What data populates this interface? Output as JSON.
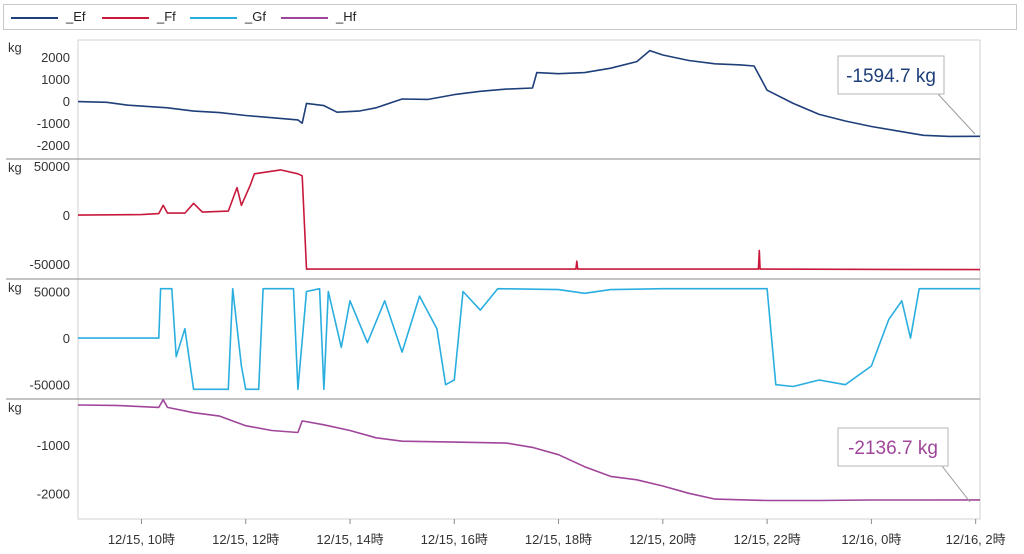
{
  "legend": {
    "items": [
      {
        "label": "_Ef",
        "color": "#1f3f7a"
      },
      {
        "label": "_Ff",
        "color": "#c8193c"
      },
      {
        "label": "_Gf",
        "color": "#2aaee0"
      },
      {
        "label": "_Hf",
        "color": "#a0469a"
      }
    ]
  },
  "chart_data": {
    "type": "line",
    "x_axis": {
      "range": [
        "12/15 08:47",
        "12/16 02:05"
      ],
      "tick_labels": [
        {
          "t": "12/15 10:00",
          "label": "12/15, 10時"
        },
        {
          "t": "12/15 12:00",
          "label": "12/15, 12時"
        },
        {
          "t": "12/15 14:00",
          "label": "12/15, 14時"
        },
        {
          "t": "12/15 16:00",
          "label": "12/15, 16時"
        },
        {
          "t": "12/15 18:00",
          "label": "12/15, 18時"
        },
        {
          "t": "12/15 20:00",
          "label": "12/15, 20時"
        },
        {
          "t": "12/15 22:00",
          "label": "12/15, 22時"
        },
        {
          "t": "12/16 00:00",
          "label": "12/16, 0時"
        },
        {
          "t": "12/16 02:00",
          "label": "12/16, 2時"
        }
      ]
    },
    "panels": [
      {
        "series": "_Ef",
        "color": "#1f3f7a",
        "unit": "kg",
        "ylim": [
          -2400,
          2600
        ],
        "yticks": [
          2000,
          1000,
          0,
          -1000,
          -2000
        ],
        "ytick_labels": [
          "2000",
          "1000",
          "0",
          "-1000",
          "-2000"
        ],
        "callout": "-1594.7 kg",
        "points": [
          [
            "12/15 08:47",
            -20
          ],
          [
            "12/15 09:20",
            -50
          ],
          [
            "12/15 09:45",
            -180
          ],
          [
            "12/15 10:30",
            -300
          ],
          [
            "12/15 11:00",
            -450
          ],
          [
            "12/15 11:30",
            -520
          ],
          [
            "12/15 12:00",
            -650
          ],
          [
            "12/15 12:30",
            -750
          ],
          [
            "12/15 13:00",
            -850
          ],
          [
            "12/15 13:05",
            -1000
          ],
          [
            "12/15 13:10",
            -100
          ],
          [
            "12/15 13:30",
            -200
          ],
          [
            "12/15 13:45",
            -500
          ],
          [
            "12/15 14:10",
            -450
          ],
          [
            "12/15 14:30",
            -300
          ],
          [
            "12/15 15:00",
            100
          ],
          [
            "12/15 15:30",
            80
          ],
          [
            "12/15 16:00",
            300
          ],
          [
            "12/15 16:30",
            450
          ],
          [
            "12/15 17:00",
            550
          ],
          [
            "12/15 17:30",
            600
          ],
          [
            "12/15 17:35",
            1300
          ],
          [
            "12/15 18:00",
            1250
          ],
          [
            "12/15 18:30",
            1300
          ],
          [
            "12/15 19:00",
            1500
          ],
          [
            "12/15 19:30",
            1800
          ],
          [
            "12/15 19:45",
            2300
          ],
          [
            "12/15 20:00",
            2100
          ],
          [
            "12/15 20:30",
            1850
          ],
          [
            "12/15 21:00",
            1700
          ],
          [
            "12/15 21:30",
            1650
          ],
          [
            "12/15 21:45",
            1600
          ],
          [
            "12/15 22:00",
            500
          ],
          [
            "12/15 22:30",
            -100
          ],
          [
            "12/15 23:00",
            -600
          ],
          [
            "12/15 23:30",
            -900
          ],
          [
            "12/16 00:00",
            -1150
          ],
          [
            "12/16 00:30",
            -1350
          ],
          [
            "12/16 01:00",
            -1550
          ],
          [
            "12/16 01:30",
            -1600
          ],
          [
            "12/16 02:05",
            -1594.7
          ]
        ]
      },
      {
        "series": "_Ff",
        "color": "#c8193c",
        "unit": "kg",
        "ylim": [
          -60000,
          52000
        ],
        "yticks": [
          50000,
          0,
          -50000
        ],
        "ytick_labels": [
          "50000",
          "0",
          "-50000"
        ],
        "points": [
          [
            "12/15 08:47",
            0
          ],
          [
            "12/15 10:00",
            500
          ],
          [
            "12/15 10:20",
            1500
          ],
          [
            "12/15 10:25",
            10000
          ],
          [
            "12/15 10:30",
            2000
          ],
          [
            "12/15 10:50",
            2000
          ],
          [
            "12/15 11:00",
            12000
          ],
          [
            "12/15 11:10",
            3000
          ],
          [
            "12/15 11:40",
            4000
          ],
          [
            "12/15 11:50",
            28000
          ],
          [
            "12/15 11:55",
            10000
          ],
          [
            "12/15 12:05",
            30000
          ],
          [
            "12/15 12:10",
            42000
          ],
          [
            "12/15 12:40",
            46000
          ],
          [
            "12/15 13:00",
            42000
          ],
          [
            "12/15 13:05",
            40000
          ],
          [
            "12/15 13:10",
            -55000
          ],
          [
            "12/15 18:20",
            -55000
          ],
          [
            "12/15 18:21",
            -47000
          ],
          [
            "12/15 18:22",
            -55000
          ],
          [
            "12/15 21:50",
            -55000
          ],
          [
            "12/15 21:51",
            -36000
          ],
          [
            "12/15 21:52",
            -55000
          ],
          [
            "12/16 02:05",
            -55500
          ]
        ]
      },
      {
        "series": "_Gf",
        "color": "#2aaee0",
        "unit": "kg",
        "ylim": [
          -60000,
          58000
        ],
        "yticks": [
          50000,
          0,
          -50000
        ],
        "ytick_labels": [
          "50000",
          "0",
          "-50000"
        ],
        "points": [
          [
            "12/15 08:47",
            0
          ],
          [
            "12/15 10:20",
            0
          ],
          [
            "12/15 10:22",
            53000
          ],
          [
            "12/15 10:35",
            53000
          ],
          [
            "12/15 10:40",
            -20000
          ],
          [
            "12/15 10:50",
            10000
          ],
          [
            "12/15 11:00",
            -55000
          ],
          [
            "12/15 11:40",
            -55000
          ],
          [
            "12/15 11:45",
            53000
          ],
          [
            "12/15 11:55",
            -30000
          ],
          [
            "12/15 12:00",
            -55000
          ],
          [
            "12/15 12:15",
            -55000
          ],
          [
            "12/15 12:20",
            53000
          ],
          [
            "12/15 12:55",
            53000
          ],
          [
            "12/15 13:00",
            -55000
          ],
          [
            "12/15 13:10",
            50000
          ],
          [
            "12/15 13:25",
            53000
          ],
          [
            "12/15 13:30",
            -55000
          ],
          [
            "12/15 13:35",
            50000
          ],
          [
            "12/15 13:50",
            -10000
          ],
          [
            "12/15 14:00",
            40000
          ],
          [
            "12/15 14:20",
            -5000
          ],
          [
            "12/15 14:40",
            40000
          ],
          [
            "12/15 15:00",
            -15000
          ],
          [
            "12/15 15:20",
            45000
          ],
          [
            "12/15 15:40",
            10000
          ],
          [
            "12/15 15:50",
            -50000
          ],
          [
            "12/15 16:00",
            -45000
          ],
          [
            "12/15 16:10",
            50000
          ],
          [
            "12/15 16:30",
            30000
          ],
          [
            "12/15 16:50",
            53000
          ],
          [
            "12/15 18:00",
            52000
          ],
          [
            "12/15 18:30",
            48000
          ],
          [
            "12/15 19:00",
            52000
          ],
          [
            "12/15 20:00",
            53000
          ],
          [
            "12/15 22:00",
            53000
          ],
          [
            "12/15 22:10",
            -50000
          ],
          [
            "12/15 22:30",
            -52000
          ],
          [
            "12/15 23:00",
            -45000
          ],
          [
            "12/15 23:30",
            -50000
          ],
          [
            "12/16 00:00",
            -30000
          ],
          [
            "12/16 00:20",
            20000
          ],
          [
            "12/16 00:35",
            40000
          ],
          [
            "12/16 00:45",
            0
          ],
          [
            "12/16 00:55",
            53000
          ],
          [
            "12/16 02:05",
            53000
          ]
        ]
      },
      {
        "series": "_Hf",
        "color": "#a0469a",
        "unit": "kg",
        "ylim": [
          -2450,
          -150
        ],
        "yticks": [
          -1000,
          -2000
        ],
        "ytick_labels": [
          "-1000",
          "-2000"
        ],
        "callout": "-2136.7 kg",
        "points": [
          [
            "12/15 08:47",
            -170
          ],
          [
            "12/15 09:30",
            -180
          ],
          [
            "12/15 10:20",
            -220
          ],
          [
            "12/15 10:25",
            -60
          ],
          [
            "12/15 10:30",
            -220
          ],
          [
            "12/15 11:00",
            -330
          ],
          [
            "12/15 11:30",
            -400
          ],
          [
            "12/15 12:00",
            -600
          ],
          [
            "12/15 12:30",
            -700
          ],
          [
            "12/15 13:00",
            -740
          ],
          [
            "12/15 13:05",
            -500
          ],
          [
            "12/15 13:30",
            -580
          ],
          [
            "12/15 14:00",
            -700
          ],
          [
            "12/15 14:30",
            -850
          ],
          [
            "12/15 15:00",
            -920
          ],
          [
            "12/15 16:00",
            -940
          ],
          [
            "12/15 17:00",
            -960
          ],
          [
            "12/15 17:30",
            -1050
          ],
          [
            "12/15 18:00",
            -1200
          ],
          [
            "12/15 18:30",
            -1450
          ],
          [
            "12/15 19:00",
            -1650
          ],
          [
            "12/15 19:30",
            -1720
          ],
          [
            "12/15 20:00",
            -1850
          ],
          [
            "12/15 20:30",
            -2000
          ],
          [
            "12/15 21:00",
            -2120
          ],
          [
            "12/15 22:00",
            -2150
          ],
          [
            "12/15 23:00",
            -2150
          ],
          [
            "12/16 00:00",
            -2140
          ],
          [
            "12/16 01:00",
            -2140
          ],
          [
            "12/16 02:05",
            -2136.7
          ]
        ]
      }
    ]
  }
}
